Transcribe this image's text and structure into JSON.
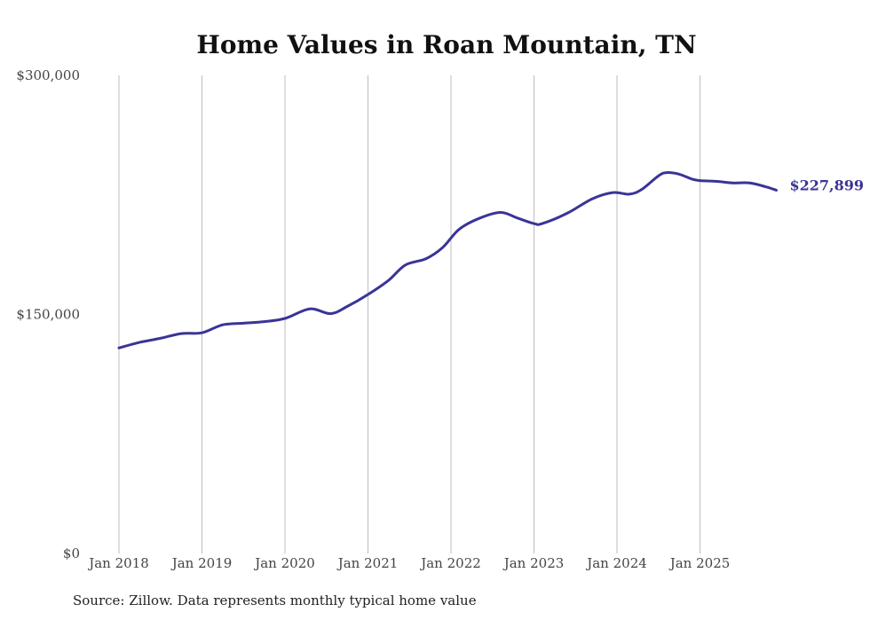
{
  "chart_data": {
    "type": "line",
    "title": "Home Values in Roan Mountain, TN",
    "xlabel": "",
    "ylabel": "",
    "ylim": [
      0,
      300000
    ],
    "y_ticks": [
      {
        "value": 0,
        "label": "$0"
      },
      {
        "value": 150000,
        "label": "$150,000"
      },
      {
        "value": 300000,
        "label": "$300,000"
      }
    ],
    "x_ticks": [
      {
        "value": 2018,
        "label": "Jan 2018"
      },
      {
        "value": 2019,
        "label": "Jan 2019"
      },
      {
        "value": 2020,
        "label": "Jan 2020"
      },
      {
        "value": 2021,
        "label": "Jan 2021"
      },
      {
        "value": 2022,
        "label": "Jan 2022"
      },
      {
        "value": 2023,
        "label": "Jan 2023"
      },
      {
        "value": 2024,
        "label": "Jan 2024"
      },
      {
        "value": 2025,
        "label": "Jan 2025"
      }
    ],
    "xlim": [
      2018,
      2026
    ],
    "grid": "vertical",
    "series": [
      {
        "color": "#3a3496",
        "end_label": "$227,899",
        "points": [
          [
            2018.0,
            129000
          ],
          [
            2018.25,
            132500
          ],
          [
            2018.5,
            135000
          ],
          [
            2018.75,
            138000
          ],
          [
            2019.0,
            138500
          ],
          [
            2019.25,
            143500
          ],
          [
            2019.5,
            144500
          ],
          [
            2019.75,
            145500
          ],
          [
            2020.0,
            147500
          ],
          [
            2020.3,
            153500
          ],
          [
            2020.55,
            150500
          ],
          [
            2020.75,
            155000
          ],
          [
            2021.0,
            162500
          ],
          [
            2021.25,
            171500
          ],
          [
            2021.45,
            181000
          ],
          [
            2021.7,
            185000
          ],
          [
            2021.9,
            192000
          ],
          [
            2022.1,
            203500
          ],
          [
            2022.35,
            210500
          ],
          [
            2022.6,
            214000
          ],
          [
            2022.8,
            210500
          ],
          [
            2023.0,
            207000
          ],
          [
            2023.1,
            207000
          ],
          [
            2023.4,
            213500
          ],
          [
            2023.7,
            222500
          ],
          [
            2023.95,
            226500
          ],
          [
            2024.15,
            225500
          ],
          [
            2024.3,
            228500
          ],
          [
            2024.5,
            237000
          ],
          [
            2024.6,
            239000
          ],
          [
            2024.75,
            238000
          ],
          [
            2024.9,
            235000
          ],
          [
            2025.0,
            234000
          ],
          [
            2025.2,
            233500
          ],
          [
            2025.4,
            232500
          ],
          [
            2025.6,
            232500
          ],
          [
            2025.8,
            230000
          ],
          [
            2025.92,
            227899
          ]
        ]
      }
    ]
  },
  "source": "Source: Zillow. Data represents monthly typical home value"
}
